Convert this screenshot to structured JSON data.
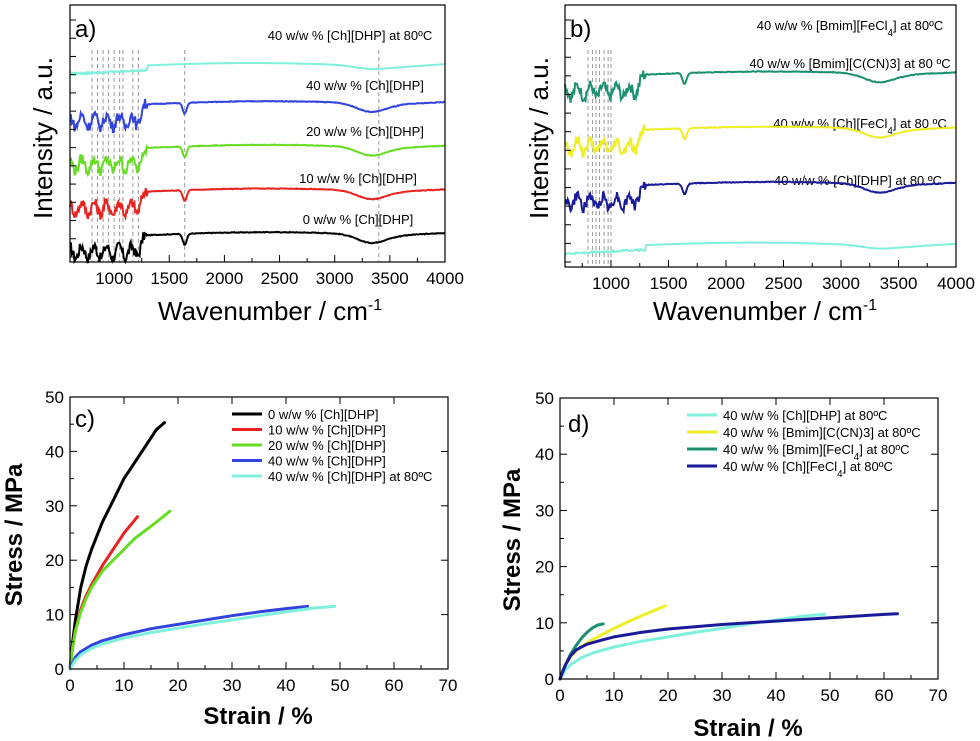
{
  "chart_data": [
    {
      "panel": "a)",
      "type": "line",
      "xlabel": "Wavenumber / cm",
      "xlabel_sup": "-1",
      "ylabel": "Intensity / a.u.",
      "xlim": [
        600,
        4000
      ],
      "xticks": [
        "1000",
        "1500",
        "2000",
        "2500",
        "3000",
        "3500",
        "4000"
      ],
      "x_tick_values": [
        1000,
        1500,
        2000,
        2500,
        3000,
        3500,
        4000
      ],
      "guide_lines": [
        800,
        850,
        900,
        950,
        1000,
        1050,
        1080,
        1170,
        1220,
        1640,
        3400
      ],
      "series": [
        {
          "name": "0 w/w % [Ch][DHP]",
          "color": "#000000",
          "offset": 0
        },
        {
          "name": "10 w/w % [Ch][DHP]",
          "color": "#e8221e",
          "offset": 1
        },
        {
          "name": "20 w/w % [Ch][DHP]",
          "color": "#66dd22",
          "offset": 2
        },
        {
          "name": "40 w/w % [Ch][DHP]",
          "color": "#3344dd",
          "offset": 3
        },
        {
          "name": "40 w/w % [Ch][DHP] at 80ºC",
          "color": "#7ff0dc",
          "offset": 4
        }
      ]
    },
    {
      "panel": "b)",
      "type": "line",
      "xlabel": "Wavenumber / cm",
      "xlabel_sup": "-1",
      "ylabel": "Intensity / a.u.",
      "xlim": [
        600,
        4000
      ],
      "xticks": [
        "1000",
        "1500",
        "2000",
        "2500",
        "3000",
        "3500",
        "4000"
      ],
      "x_tick_values": [
        1000,
        1500,
        2000,
        2500,
        3000,
        3500,
        4000
      ],
      "guide_lines": [
        800,
        840,
        870,
        900,
        940,
        975,
        1000
      ],
      "series": [
        {
          "name": "40 w/w % [Ch][DHP] at 80 ºC",
          "color": "#7ff0dc",
          "offset": 0
        },
        {
          "name": "40 w/w % [Ch][FeCl4] at 80 ºC",
          "color": "#1a1a99",
          "offset": 1
        },
        {
          "name": "40 w/w % [Bmim][C(CN)3] at 80 ºC",
          "color": "#eeee22",
          "offset": 2
        },
        {
          "name": "40 w/w % [Bmim][FeCl4] at 80ºC",
          "color": "#1a9070",
          "offset": 3
        }
      ]
    },
    {
      "panel": "c)",
      "type": "line",
      "xlabel": "Strain / %",
      "ylabel": "Stress / MPa",
      "xlim": [
        0,
        70
      ],
      "ylim": [
        0,
        50
      ],
      "xticks": [
        "0",
        "10",
        "20",
        "30",
        "40",
        "50",
        "60",
        "70"
      ],
      "yticks": [
        "0",
        "10",
        "20",
        "30",
        "40",
        "50"
      ],
      "legend": [
        "0 w/w %   [Ch][DHP]",
        "10 w/w % [Ch][DHP]",
        "20 w/w % [Ch][DHP]",
        "40 w/w % [Ch][DHP]",
        "40 w/w % [Ch][DHP] at 80ºC"
      ],
      "series": [
        {
          "name": "0 w/w % [Ch][DHP]",
          "color": "#000000",
          "x": [
            0,
            0.5,
            1,
            2,
            3,
            4,
            6,
            8,
            10,
            12,
            14,
            16,
            17.5
          ],
          "y": [
            0,
            5,
            9,
            15,
            19,
            22,
            27,
            31,
            35,
            38,
            41,
            44,
            45.3
          ]
        },
        {
          "name": "10 w/w % [Ch][DHP]",
          "color": "#e8221e",
          "x": [
            0,
            0.5,
            1,
            2,
            3,
            4,
            6,
            8,
            10,
            12.5
          ],
          "y": [
            0,
            4,
            7,
            11,
            13.5,
            15.5,
            19,
            22,
            25,
            28
          ]
        },
        {
          "name": "20 w/w % [Ch][DHP]",
          "color": "#66dd22",
          "x": [
            0,
            0.5,
            1,
            2,
            3,
            4,
            6,
            8,
            10,
            12,
            14,
            16,
            18.5
          ],
          "y": [
            0,
            4,
            7,
            10.5,
            13,
            15,
            18,
            20,
            22,
            24,
            25.5,
            27,
            29
          ]
        },
        {
          "name": "40 w/w % [Ch][DHP]",
          "color": "#3344dd",
          "x": [
            0,
            1,
            2,
            4,
            6,
            10,
            15,
            20,
            25,
            30,
            35,
            40,
            44
          ],
          "y": [
            0,
            2.2,
            3.2,
            4.4,
            5.2,
            6.3,
            7.4,
            8.2,
            9,
            9.8,
            10.5,
            11.1,
            11.5
          ]
        },
        {
          "name": "40 w/w % [Ch][DHP] at 80ºC",
          "color": "#7ff0dc",
          "x": [
            0,
            1,
            2,
            4,
            6,
            10,
            15,
            20,
            25,
            30,
            35,
            40,
            45,
            49
          ],
          "y": [
            0,
            1.6,
            2.6,
            3.8,
            4.6,
            5.7,
            6.7,
            7.5,
            8.3,
            9,
            9.8,
            10.5,
            11.2,
            11.5
          ]
        }
      ]
    },
    {
      "panel": "d)",
      "type": "line",
      "xlabel": "Strain / %",
      "ylabel": "Stress / MPa",
      "xlim": [
        0,
        70
      ],
      "ylim": [
        0,
        50
      ],
      "xticks": [
        "0",
        "10",
        "20",
        "30",
        "40",
        "50",
        "60",
        "70"
      ],
      "yticks": [
        "0",
        "10",
        "20",
        "30",
        "40",
        "50"
      ],
      "legend": [
        "40 w/w % [Ch][DHP] at 80ºC",
        "40 w/w % [Bmim][C(CN)3] at 80ºC",
        "40 w/w % [Bmim][FeCl4] at 80ºC",
        "40 w/w % [Ch][FeCl4] at 80ºC"
      ],
      "series": [
        {
          "name": "40 w/w % [Ch][DHP] at 80ºC",
          "color": "#7ff0dc",
          "x": [
            0,
            1,
            2,
            4,
            6,
            10,
            15,
            20,
            25,
            30,
            35,
            40,
            45,
            49
          ],
          "y": [
            0,
            1.6,
            2.6,
            3.8,
            4.6,
            5.7,
            6.7,
            7.5,
            8.3,
            9,
            9.8,
            10.5,
            11.2,
            11.5
          ]
        },
        {
          "name": "40 w/w % [Bmim][C(CN)3] at 80ºC",
          "color": "#eeee22",
          "x": [
            0,
            0.5,
            1,
            2,
            3,
            4,
            6,
            8,
            10,
            12,
            14,
            16,
            18,
            19.5
          ],
          "y": [
            0,
            1.5,
            2.5,
            4,
            5,
            5.8,
            7,
            8,
            9,
            9.9,
            10.8,
            11.6,
            12.4,
            13
          ]
        },
        {
          "name": "40 w/w % [Bmim][FeCl4] at 80ºC",
          "color": "#1a9070",
          "x": [
            0,
            0.5,
            1,
            2,
            3,
            4,
            5,
            6,
            7,
            8
          ],
          "y": [
            0,
            1.5,
            2.5,
            4.5,
            6,
            7.3,
            8.3,
            9.1,
            9.6,
            9.8
          ]
        },
        {
          "name": "40 w/w % [Ch][FeCl4] at 80ºC",
          "color": "#1a1a99",
          "x": [
            0,
            1,
            2,
            3,
            5,
            8,
            10,
            15,
            20,
            25,
            30,
            40,
            50,
            60,
            62.5
          ],
          "y": [
            0,
            2.5,
            4.2,
            5.2,
            6.2,
            7,
            7.5,
            8.3,
            8.9,
            9.3,
            9.7,
            10.3,
            10.9,
            11.5,
            11.6
          ]
        }
      ]
    }
  ]
}
